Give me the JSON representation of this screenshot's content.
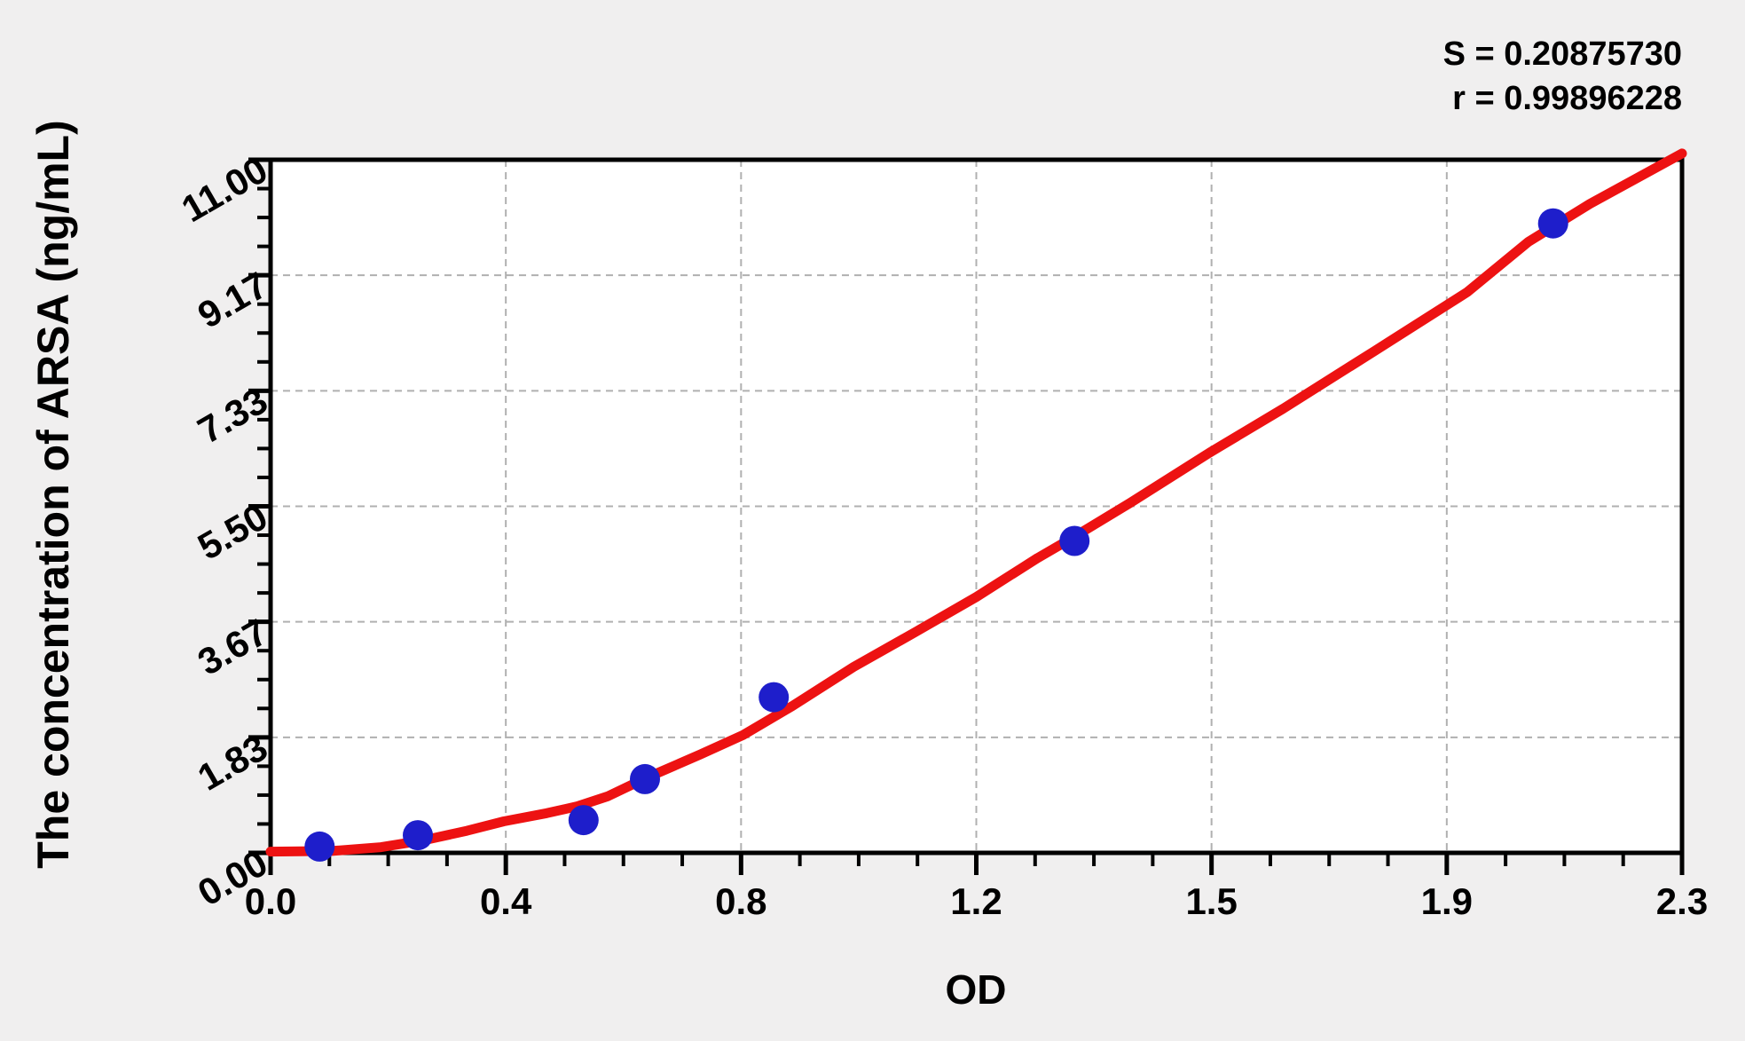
{
  "figure": {
    "background": "#f0efef",
    "plot_background": "#ffffff"
  },
  "chart_data": {
    "type": "scatter",
    "title": "",
    "xlabel": "OD",
    "ylabel": "The concentration of ARSA (ng/mL)",
    "xlim": [
      0,
      2.3
    ],
    "ylim": [
      0,
      11
    ],
    "x_tick_labels": [
      "0.0",
      "0.4",
      "0.8",
      "1.2",
      "1.5",
      "1.9",
      "2.3"
    ],
    "y_tick_labels": [
      "0.00",
      "1.83",
      "3.67",
      "5.50",
      "7.33",
      "9.17",
      "11.00"
    ],
    "minor_ticks_per_interval": 3,
    "grid": "dashed-at-major-ticks",
    "legend_position": "none",
    "stats": {
      "s_line": "S = 0.20875730",
      "r_line": "r = 0.99896228"
    },
    "colors": {
      "point": "#1e1ecb",
      "curve": "#ed1212",
      "grid": "#b0b0b0",
      "axis": "#000000",
      "figure_bg": "#f0efef",
      "plot_bg": "#ffffff"
    },
    "series": [
      {
        "name": "standard_points",
        "type": "scatter",
        "points": [
          [
            0.08,
            0.1
          ],
          [
            0.24,
            0.28
          ],
          [
            0.51,
            0.52
          ],
          [
            0.61,
            1.17
          ],
          [
            0.82,
            2.47
          ],
          [
            1.31,
            4.95
          ],
          [
            2.09,
            9.99
          ]
        ]
      },
      {
        "name": "fitted_curve",
        "type": "line",
        "points": [
          [
            0.0,
            0.02
          ],
          [
            0.1,
            0.03
          ],
          [
            0.18,
            0.09
          ],
          [
            0.25,
            0.2
          ],
          [
            0.32,
            0.35
          ],
          [
            0.38,
            0.5
          ],
          [
            0.45,
            0.63
          ],
          [
            0.5,
            0.74
          ],
          [
            0.55,
            0.9
          ],
          [
            0.61,
            1.18
          ],
          [
            0.7,
            1.56
          ],
          [
            0.77,
            1.87
          ],
          [
            0.85,
            2.33
          ],
          [
            0.95,
            2.95
          ],
          [
            1.05,
            3.5
          ],
          [
            1.15,
            4.06
          ],
          [
            1.25,
            4.68
          ],
          [
            1.31,
            5.02
          ],
          [
            1.4,
            5.55
          ],
          [
            1.53,
            6.35
          ],
          [
            1.65,
            7.05
          ],
          [
            1.8,
            7.97
          ],
          [
            1.95,
            8.9
          ],
          [
            2.05,
            9.7
          ],
          [
            2.15,
            10.3
          ],
          [
            2.3,
            11.1
          ]
        ]
      }
    ]
  }
}
